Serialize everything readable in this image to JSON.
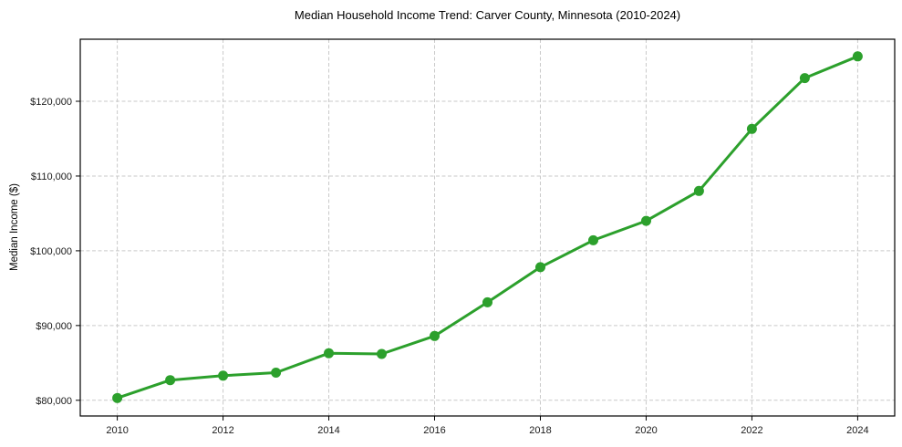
{
  "chart_data": {
    "type": "line",
    "title": "Median Household Income Trend: Carver County, Minnesota (2010-2024)",
    "xlabel": "",
    "ylabel": "Median Income ($)",
    "x": [
      2010,
      2011,
      2012,
      2013,
      2014,
      2015,
      2016,
      2017,
      2018,
      2019,
      2020,
      2021,
      2022,
      2023,
      2024
    ],
    "values": [
      80300,
      82700,
      83300,
      83700,
      86300,
      86200,
      88600,
      93100,
      97800,
      101400,
      104000,
      108000,
      116300,
      123100,
      126000
    ],
    "xlim": [
      2009.3,
      2024.7
    ],
    "ylim": [
      77900,
      128300
    ],
    "grid": true,
    "grid_style": "dashed",
    "legend": "none",
    "marker": "circle",
    "line_color": "#2ca02c",
    "grid_color": "#c9c9c9",
    "axis_color": "#000000",
    "text_color": "#1a1a1a",
    "xticks": [
      {
        "value": 2010,
        "label": "2010"
      },
      {
        "value": 2012,
        "label": "2012"
      },
      {
        "value": 2014,
        "label": "2014"
      },
      {
        "value": 2016,
        "label": "2016"
      },
      {
        "value": 2018,
        "label": "2018"
      },
      {
        "value": 2020,
        "label": "2020"
      },
      {
        "value": 2022,
        "label": "2022"
      },
      {
        "value": 2024,
        "label": "2024"
      }
    ],
    "yticks": [
      {
        "value": 80000,
        "label": "$80,000"
      },
      {
        "value": 90000,
        "label": "$90,000"
      },
      {
        "value": 100000,
        "label": "$100,000"
      },
      {
        "value": 110000,
        "label": "$110,000"
      },
      {
        "value": 120000,
        "label": "$120,000"
      }
    ]
  }
}
